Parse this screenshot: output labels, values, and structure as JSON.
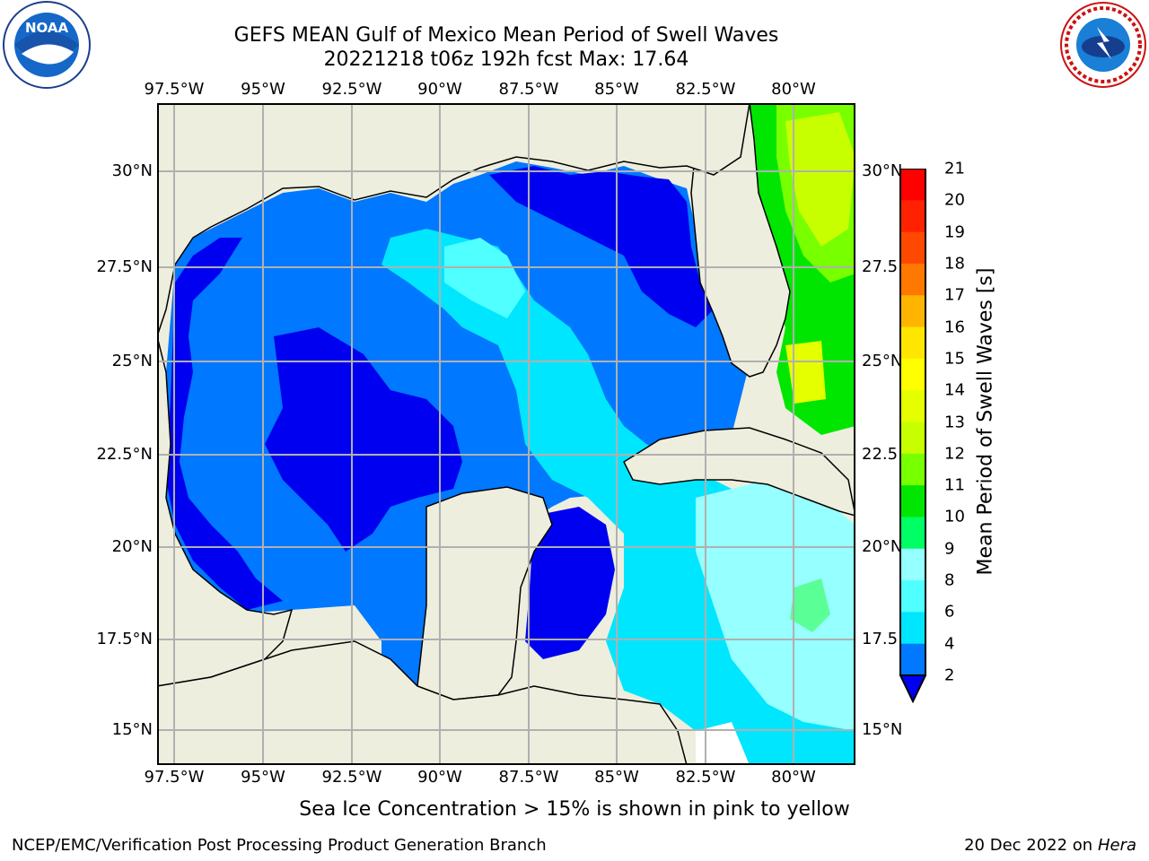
{
  "title_line1": "GEFS MEAN Gulf of Mexico Mean Period of Swell Waves",
  "title_line2": "20221218 t06z 192h fcst   Max: 17.64",
  "lon_ticks": [
    "97.5°W",
    "95°W",
    "92.5°W",
    "90°W",
    "87.5°W",
    "85°W",
    "82.5°W",
    "80°W"
  ],
  "lat_ticks_left": [
    "30°N",
    "27.5°N",
    "25°N",
    "22.5°N",
    "20°N",
    "17.5°N",
    "15°N"
  ],
  "lat_ticks_right": [
    "30°N",
    "27.5",
    "25°N",
    "22.5",
    "20°N",
    "17.5",
    "15°N"
  ],
  "colorbar": {
    "title": "Mean Period of Swell Waves [s]",
    "labels": [
      "21",
      "20",
      "19",
      "18",
      "17",
      "16",
      "15",
      "14",
      "13",
      "12",
      "11",
      "10",
      "9",
      "8",
      "6",
      "4",
      "2"
    ],
    "colors": [
      "#ff0000",
      "#ff2200",
      "#ff4800",
      "#ff7800",
      "#ff9600",
      "#ffb400",
      "#ffe600",
      "#ffff00",
      "#e6ff00",
      "#c8ff00",
      "#78ff00",
      "#00e600",
      "#00ff64",
      "#5aff96",
      "#96ffff",
      "#50ffff",
      "#00e6ff",
      "#0078ff",
      "#0000f0"
    ]
  },
  "note": "Sea Ice Concentration > 15% is shown in pink to yellow",
  "footer_left": "NCEP/EMC/Verification Post Processing Product Generation Branch",
  "footer_date": "20 Dec 2022 on",
  "footer_host": "Hera",
  "logos": {
    "left": "NOAA",
    "right": "NATIONAL WEATHER SERVICE"
  },
  "colors": {
    "land": "#eeeede",
    "deep_blue": "#0000f0",
    "mid_blue": "#0078ff",
    "cyan": "#00e6ff",
    "light_cyan": "#50ffff",
    "pale_cyan": "#96ffff",
    "green": "#5aff96",
    "bright_green": "#00e600",
    "lime": "#78ff00",
    "yellow": "#e6ff00",
    "orange": "#ffb400"
  }
}
